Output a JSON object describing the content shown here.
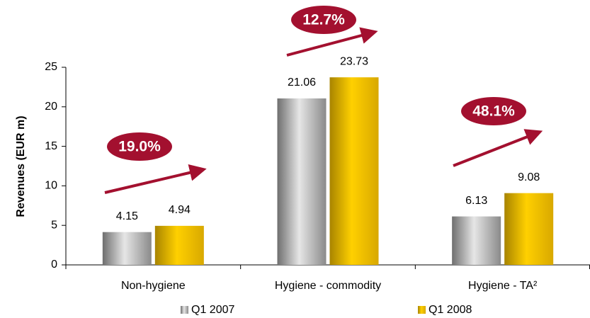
{
  "chart_data": {
    "type": "bar",
    "y_label": "Revenues (EUR m)",
    "categories": [
      "Non-hygiene",
      "Hygiene - commodity",
      "Hygiene - TA²"
    ],
    "series": [
      {
        "name": "Q1 2007",
        "color": "#9a9a9a",
        "values": [
          4.15,
          21.06,
          6.13
        ]
      },
      {
        "name": "Q1 2008",
        "color": "#e8b800",
        "values": [
          4.94,
          23.73,
          9.08
        ]
      }
    ],
    "ylim": [
      0,
      25
    ],
    "yticks": [
      0,
      5,
      10,
      15,
      20,
      25
    ],
    "annotations": [
      "19.0%",
      "12.7%",
      "48.1%"
    ],
    "annotation_color": "#a3102f"
  }
}
